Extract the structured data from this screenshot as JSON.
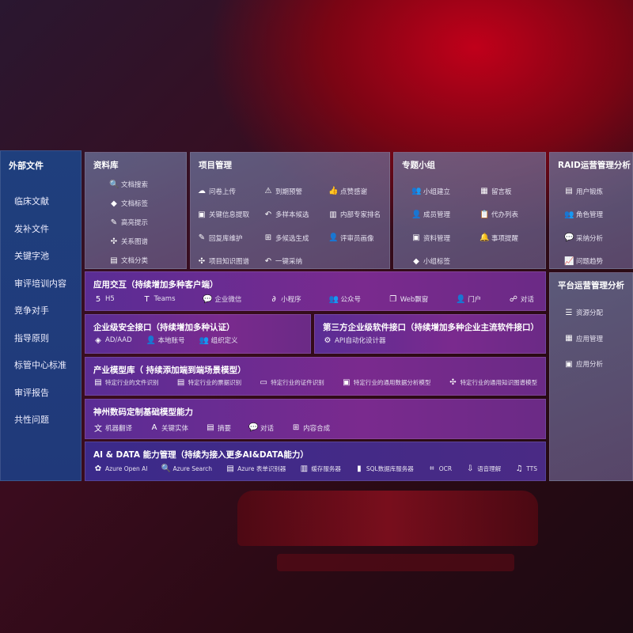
{
  "sidebar": {
    "title": "外部文件",
    "items": [
      "临床文献",
      "发补文件",
      "关键字池",
      "审评培训内容",
      "竞争对手",
      "指导原则",
      "标管中心标准",
      "审评报告",
      "共性问题"
    ]
  },
  "library": {
    "title": "资料库",
    "items": [
      {
        "label": "文档搜索",
        "icon": "document-search-icon",
        "g": "🔍"
      },
      {
        "label": "文档标签",
        "icon": "tag-icon",
        "g": "◆"
      },
      {
        "label": "高亮提示",
        "icon": "pen-icon",
        "g": "✎"
      },
      {
        "label": "关系图谱",
        "icon": "graph-icon",
        "g": "✣"
      },
      {
        "label": "文档分类",
        "icon": "documents-icon",
        "g": "▤"
      }
    ]
  },
  "project": {
    "title": "项目管理",
    "items": [
      {
        "label": "问卷上传",
        "icon": "cloud-upload-icon",
        "g": "☁"
      },
      {
        "label": "到期预警",
        "icon": "alarm-icon",
        "g": "⚠"
      },
      {
        "label": "点赞感谢",
        "icon": "thumbs-up-icon",
        "g": "👍"
      },
      {
        "label": "关键信息提取",
        "icon": "window-icon",
        "g": "▣"
      },
      {
        "label": "多样本候选",
        "icon": "reply-icon",
        "g": "↶"
      },
      {
        "label": "内部专家排名",
        "icon": "ranking-icon",
        "g": "▥"
      },
      {
        "label": "回复库维护",
        "icon": "edit-icon",
        "g": "✎"
      },
      {
        "label": "多候选生成",
        "icon": "puzzle-icon",
        "g": "⊞"
      },
      {
        "label": "评审员画像",
        "icon": "user-icon",
        "g": "👤"
      },
      {
        "label": "项目知识图谱",
        "icon": "graph-icon",
        "g": "✣"
      },
      {
        "label": "一键采纳",
        "icon": "reply-icon",
        "g": "↶"
      }
    ]
  },
  "group": {
    "title": "专题小组",
    "items": [
      {
        "label": "小组建立",
        "icon": "group-icon",
        "g": "👥"
      },
      {
        "label": "留言板",
        "icon": "bbs-icon",
        "g": "▦"
      },
      {
        "label": "成员管理",
        "icon": "user-add-icon",
        "g": "👤"
      },
      {
        "label": "代办列表",
        "icon": "clipboard-icon",
        "g": "📋"
      },
      {
        "label": "资料管理",
        "icon": "folder-icon",
        "g": "▣"
      },
      {
        "label": "事项提醒",
        "icon": "bell-icon",
        "g": "🔔"
      },
      {
        "label": "小组标签",
        "icon": "tag-icon",
        "g": "◆"
      }
    ]
  },
  "raid": {
    "title": "RAID运营管理分析",
    "items": [
      {
        "label": "用户锻炼",
        "icon": "id-card-icon",
        "g": "▤"
      },
      {
        "label": "角色管理",
        "icon": "users-icon",
        "g": "👥"
      },
      {
        "label": "采纳分析",
        "icon": "qa-icon",
        "g": "💬"
      },
      {
        "label": "问题趋势",
        "icon": "chart-trend-icon",
        "g": "📈"
      }
    ]
  },
  "platform": {
    "title": "平台运营管理分析",
    "items": [
      {
        "label": "资源分配",
        "icon": "checklist-icon",
        "g": "☰"
      },
      {
        "label": "应用管理",
        "icon": "apps-icon",
        "g": "▦"
      },
      {
        "label": "应用分析",
        "icon": "analysis-icon",
        "g": "▣"
      }
    ]
  },
  "app": {
    "title": "应用交互（持续增加多种客户端）",
    "items": [
      {
        "label": "H5",
        "icon": "html5-icon",
        "g": "5"
      },
      {
        "label": "Teams",
        "icon": "teams-icon",
        "g": "T"
      },
      {
        "label": "企业微信",
        "icon": "wecom-icon",
        "g": "💬"
      },
      {
        "label": "小程序",
        "icon": "miniprogram-icon",
        "g": "∂"
      },
      {
        "label": "公众号",
        "icon": "official-account-icon",
        "g": "👥"
      },
      {
        "label": "Web飘窗",
        "icon": "window-icon",
        "g": "❐"
      },
      {
        "label": "门户",
        "icon": "portal-icon",
        "g": "👤"
      },
      {
        "label": "对话",
        "icon": "chat-icon",
        "g": "☍"
      }
    ]
  },
  "security": {
    "title": "企业级安全接口（持续增加多种认证）",
    "items": [
      {
        "label": "AD/AAD",
        "icon": "ad-icon",
        "g": "◈"
      },
      {
        "label": "本地账号",
        "icon": "account-icon",
        "g": "👤"
      },
      {
        "label": "组织定义",
        "icon": "org-icon",
        "g": "👥"
      }
    ]
  },
  "third": {
    "title": "第三方企业级软件接口（持续增加多种企业主流软件接口）",
    "items": [
      {
        "label": "API自动化设计器",
        "icon": "gear-icon",
        "g": "⚙"
      }
    ]
  },
  "industry": {
    "title": "产业模型库（ 持续添加端到端场景模型）",
    "items": [
      {
        "label": "特定行业的文件识别",
        "icon": "file-icon",
        "g": "▤"
      },
      {
        "label": "特定行业的票据识别",
        "icon": "receipt-icon",
        "g": "▤"
      },
      {
        "label": "特定行业的证件识别",
        "icon": "id-card-icon",
        "g": "▭"
      },
      {
        "label": "特定行业的通用数据分析模型",
        "icon": "chart-icon",
        "g": "▣"
      },
      {
        "label": "特定行业的通用知识图谱模型",
        "icon": "graph-icon",
        "g": "✣"
      }
    ]
  },
  "base": {
    "title": "神州数码定制基础模型能力",
    "items": [
      {
        "label": "机器翻译",
        "icon": "translate-icon",
        "g": "文"
      },
      {
        "label": "关键实体",
        "icon": "entity-icon",
        "g": "A"
      },
      {
        "label": "摘要",
        "icon": "summary-icon",
        "g": "▤"
      },
      {
        "label": "对话",
        "icon": "chat-icon",
        "g": "💬"
      },
      {
        "label": "内容合成",
        "icon": "compose-icon",
        "g": "⊞"
      }
    ]
  },
  "ai": {
    "title": "AI & DATA 能力管理（持续为接入更多AI&DATA能力）",
    "items": [
      {
        "label": "Azure Open AI",
        "icon": "openai-icon",
        "g": "✿"
      },
      {
        "label": "Azure Search",
        "icon": "search-icon",
        "g": "🔍"
      },
      {
        "label": "Azure 表单识别器",
        "icon": "form-icon",
        "g": "▤"
      },
      {
        "label": "缓存服务器",
        "icon": "cache-icon",
        "g": "▥"
      },
      {
        "label": "SQL数据库服务器",
        "icon": "database-icon",
        "g": "▮"
      },
      {
        "label": "OCR",
        "icon": "ocr-icon",
        "g": "⌗"
      },
      {
        "label": "语音理解",
        "icon": "speech-icon",
        "g": "⇩"
      },
      {
        "label": "TTS",
        "icon": "tts-icon",
        "g": "♫"
      }
    ]
  }
}
